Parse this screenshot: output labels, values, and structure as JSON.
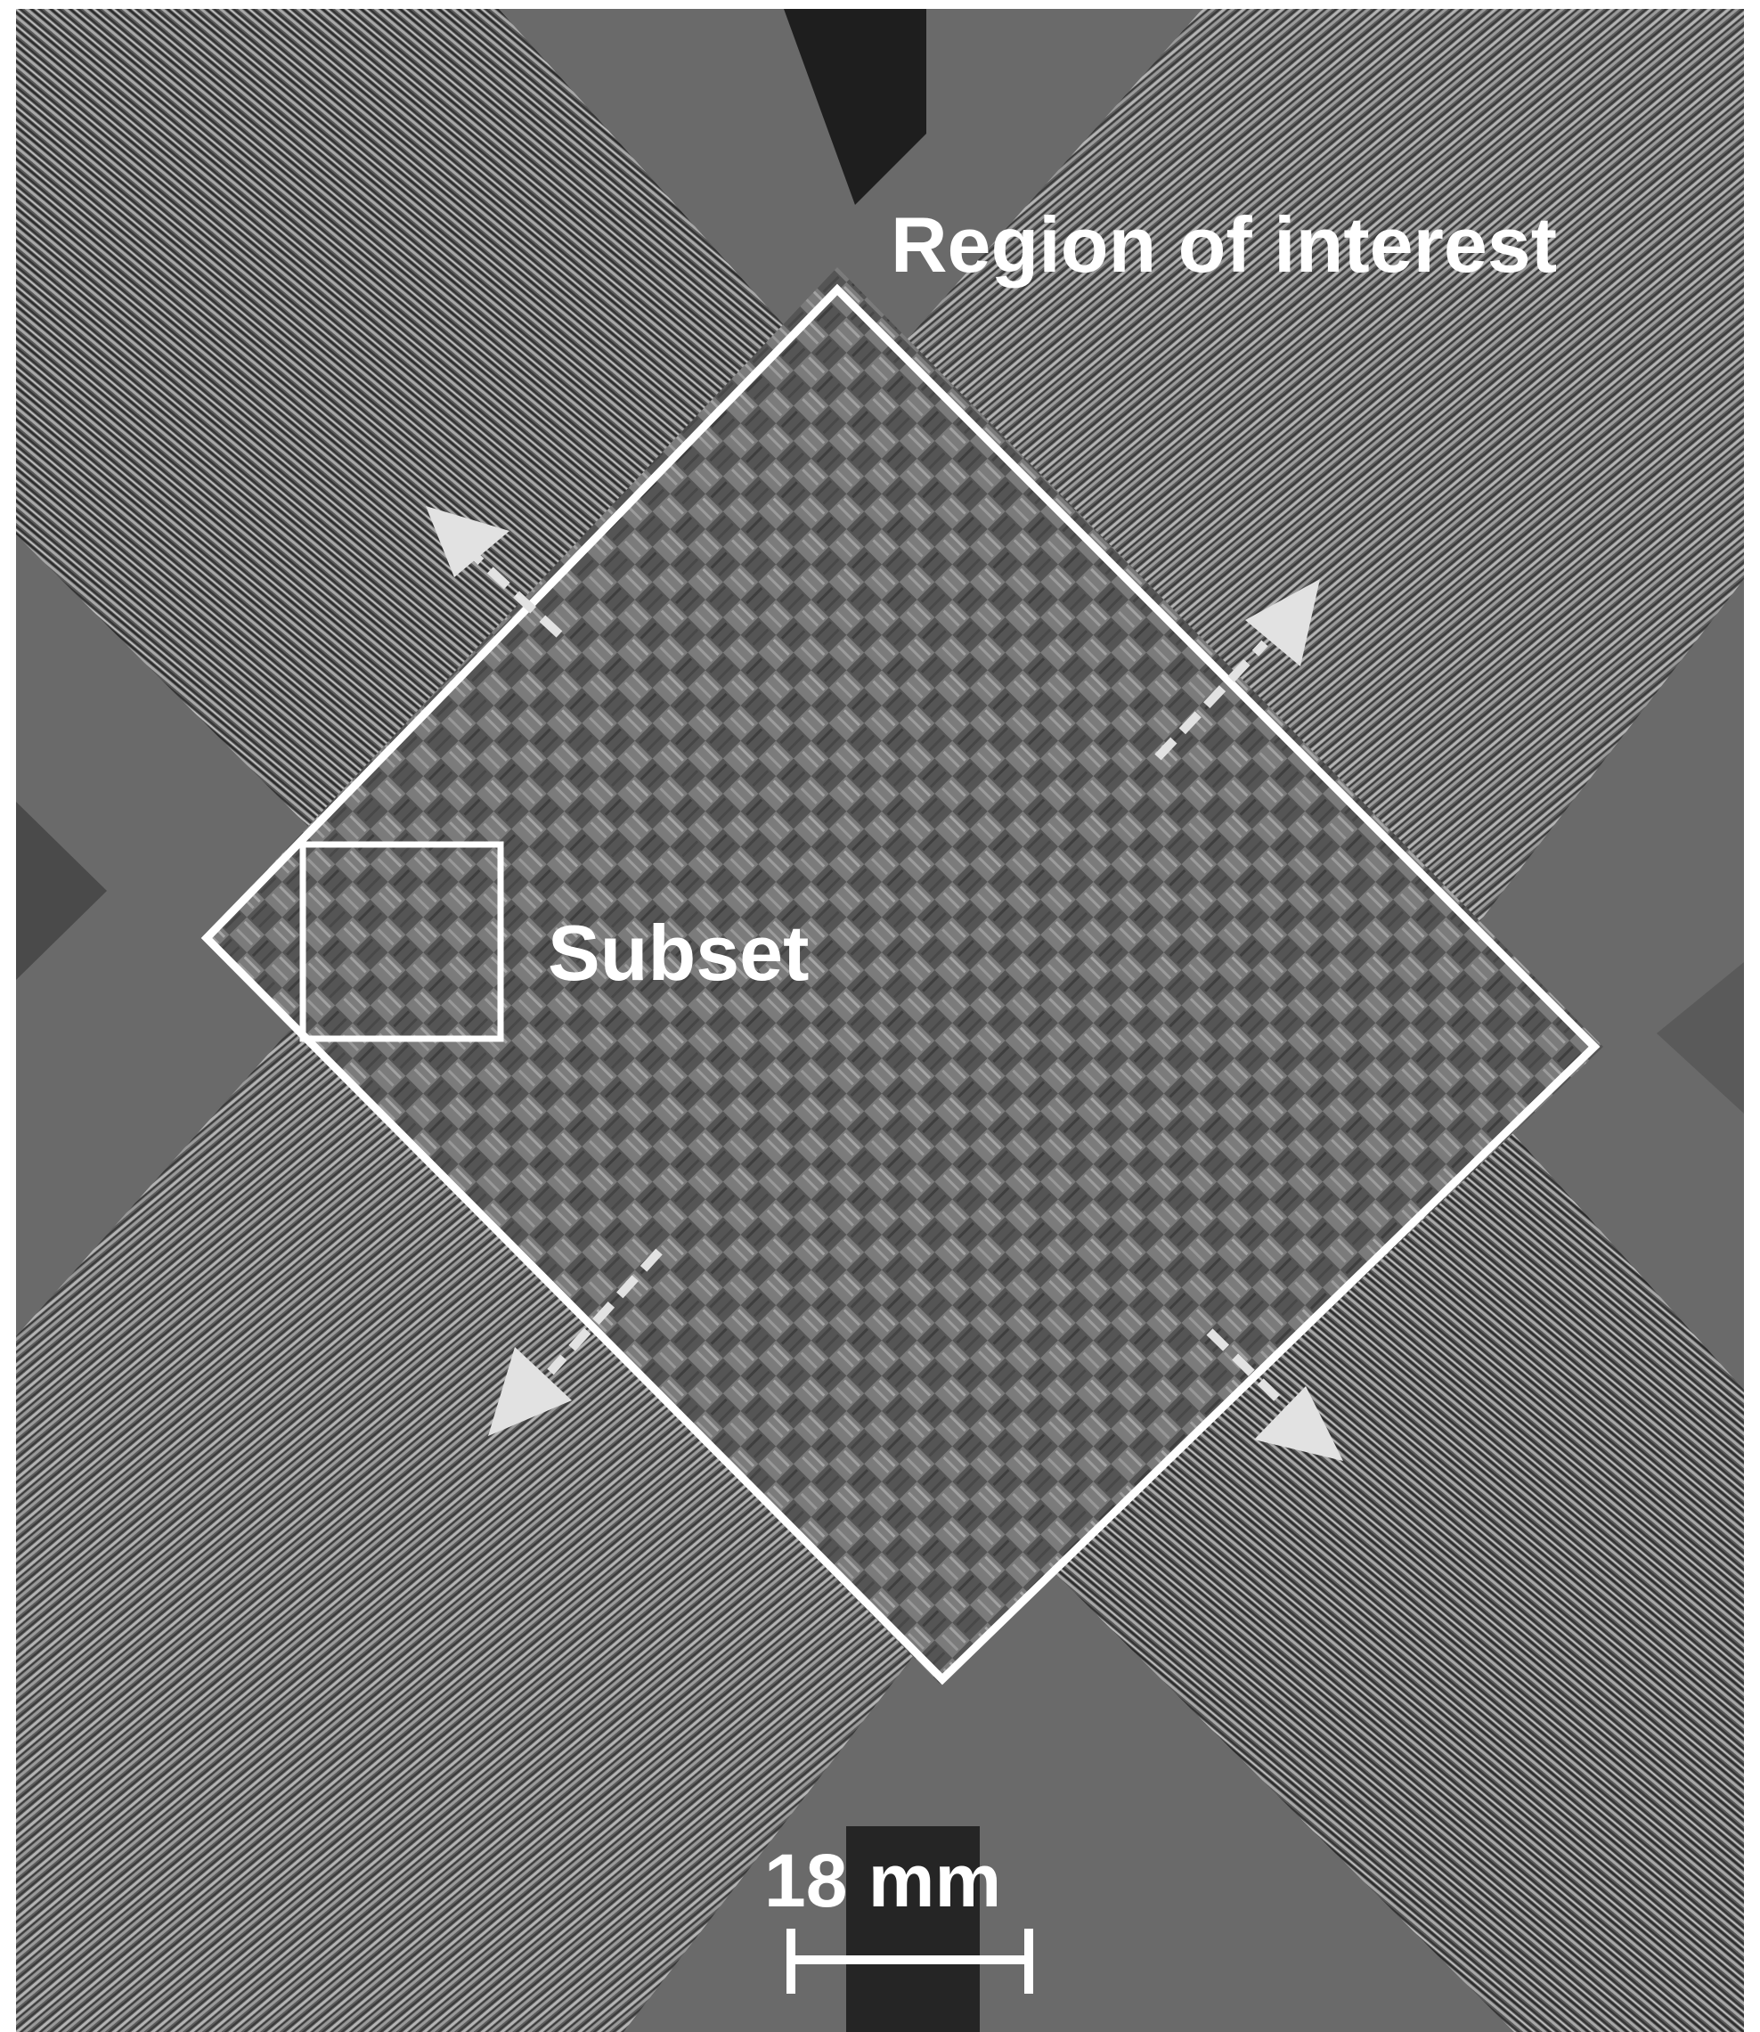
{
  "figure": {
    "labels": {
      "region": "Region of interest",
      "subset": "Subset",
      "scale": "18 mm"
    },
    "colors": {
      "background": "#6a6a6a",
      "fiber_light": "#c8c8c8",
      "fiber_dark": "#2a2a2a",
      "overlay": "#ffffff",
      "arrow": "#e2e2e2"
    }
  }
}
